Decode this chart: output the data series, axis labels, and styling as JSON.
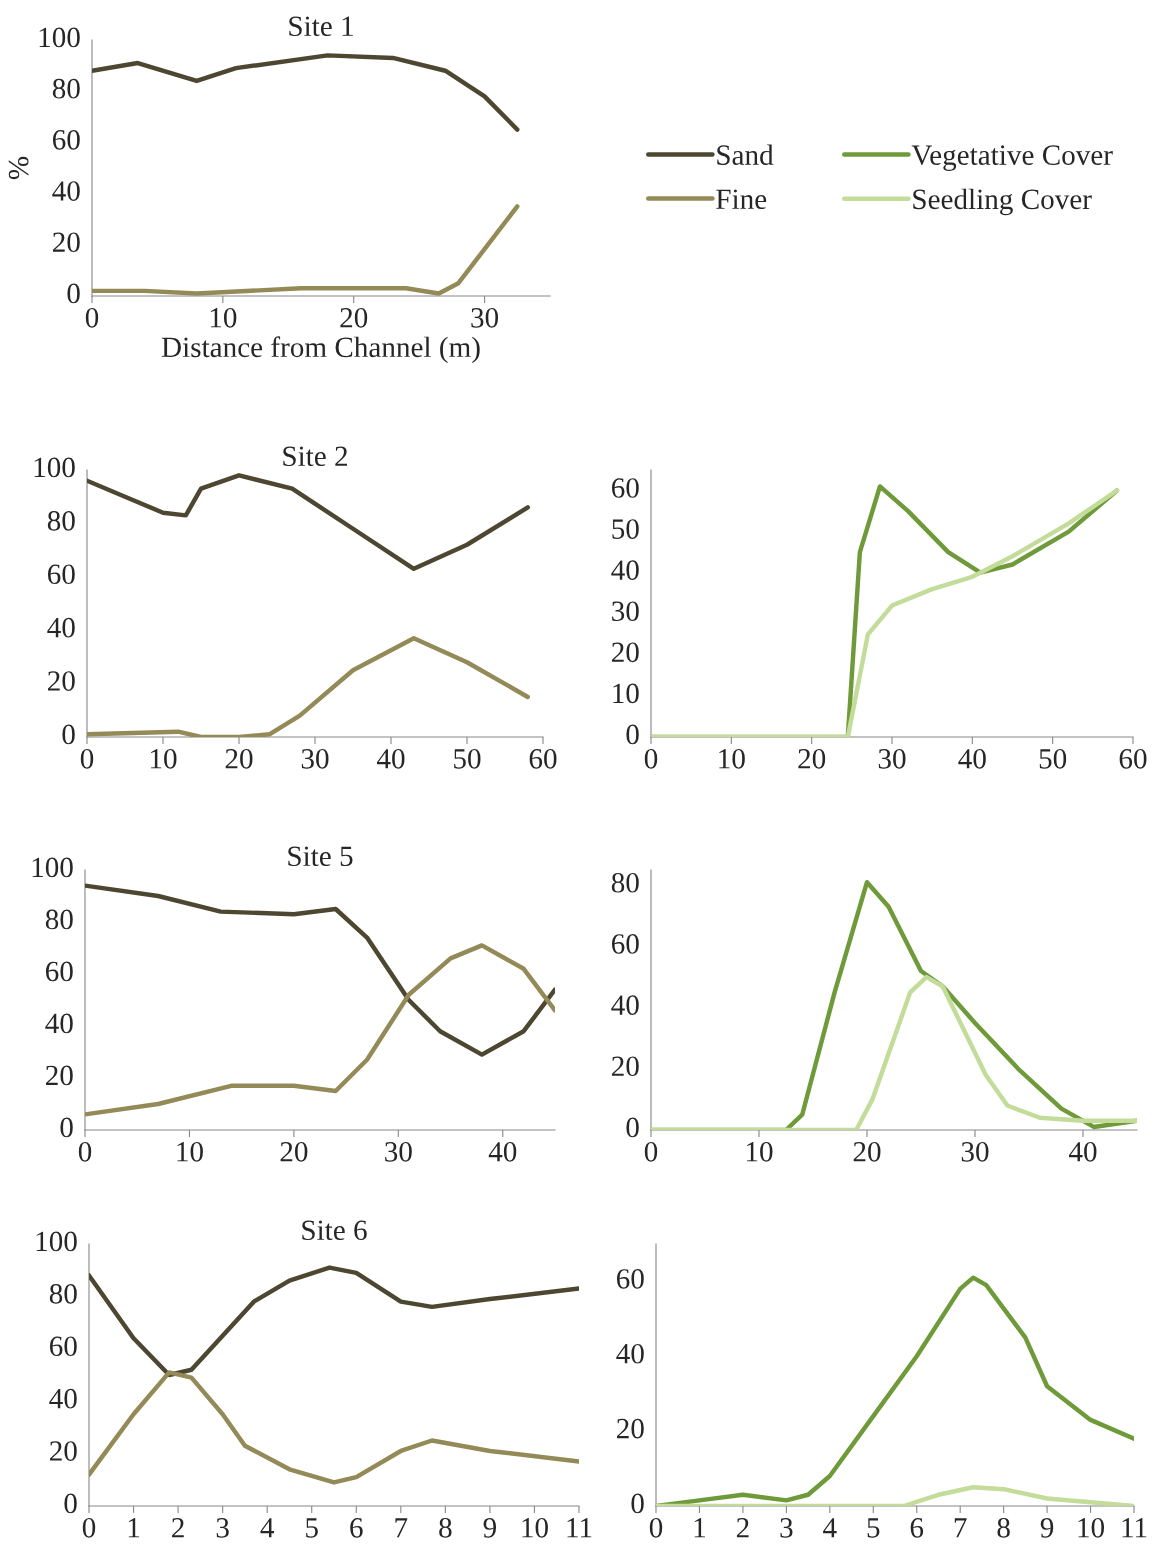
{
  "chart_data": [
    {
      "type": "line",
      "title": "Site 1",
      "xlabel": "Distance from Channel (m)",
      "ylabel": "%",
      "xlim": [
        0,
        35
      ],
      "xticks": [
        0,
        10,
        20,
        30
      ],
      "ylim": [
        0,
        100
      ],
      "yticks": [
        0,
        20,
        40,
        60,
        80,
        100
      ],
      "grid": false,
      "legend": "right",
      "line_style": "solid",
      "marker": "none",
      "series": [
        {
          "name": "Sand",
          "color": "#4d4630",
          "x": [
            0,
            3.5,
            8,
            11,
            18,
            23,
            27,
            30,
            32.5
          ],
          "values": [
            88,
            91,
            84,
            89,
            94,
            93,
            88,
            78,
            65
          ]
        },
        {
          "name": "Fine",
          "color": "#938a57",
          "x": [
            0,
            4,
            8,
            16,
            24,
            26.5,
            28,
            32.5
          ],
          "values": [
            2,
            2,
            1,
            3,
            3,
            1,
            5,
            35
          ]
        }
      ]
    },
    {
      "type": "line",
      "title": "Site 2",
      "xlim": [
        0,
        60
      ],
      "xticks": [
        0,
        10,
        20,
        30,
        40,
        50,
        60
      ],
      "ylim": [
        0,
        100
      ],
      "yticks": [
        0,
        20,
        40,
        60,
        80,
        100
      ],
      "grid": false,
      "line_style": "solid",
      "marker": "none",
      "series": [
        {
          "color": "#4d4630",
          "x": [
            0,
            5,
            10,
            13,
            15,
            20,
            27,
            35,
            43,
            50,
            58
          ],
          "values": [
            96,
            90,
            84,
            83,
            93,
            98,
            93,
            78,
            63,
            72,
            86
          ]
        },
        {
          "color": "#938a57",
          "x": [
            0,
            12,
            15,
            20,
            24,
            28,
            35,
            43,
            50,
            58
          ],
          "values": [
            1,
            2,
            0,
            0,
            1,
            8,
            25,
            37,
            28,
            15
          ]
        }
      ]
    },
    {
      "type": "line",
      "xlim": [
        0,
        60
      ],
      "xticks": [
        0,
        10,
        20,
        30,
        40,
        50,
        60
      ],
      "ylim": [
        0,
        65
      ],
      "yticks": [
        0,
        10,
        20,
        30,
        40,
        50,
        60
      ],
      "grid": false,
      "legend": "top",
      "line_style": "solid",
      "marker": "none",
      "series": [
        {
          "name": "Vegetative Cover",
          "color": "#6f9a3a",
          "x": [
            0,
            24.5,
            26,
            28.5,
            32,
            37,
            41,
            45,
            52,
            58
          ],
          "values": [
            0,
            0,
            45,
            61,
            55,
            45,
            40,
            42,
            50,
            60
          ]
        },
        {
          "name": "Seedling Cover",
          "color": "#c3dc9a",
          "x": [
            0,
            24.5,
            27,
            30,
            35,
            40,
            45,
            52,
            58
          ],
          "values": [
            0,
            0,
            25,
            32,
            36,
            39,
            44,
            52,
            60
          ]
        }
      ]
    },
    {
      "type": "line",
      "title": "Site 5",
      "xlim": [
        0,
        45
      ],
      "xticks": [
        0,
        10,
        20,
        30,
        40
      ],
      "ylim": [
        0,
        100
      ],
      "yticks": [
        0,
        20,
        40,
        60,
        80,
        100
      ],
      "grid": false,
      "line_style": "solid",
      "marker": "none",
      "series": [
        {
          "color": "#4d4630",
          "x": [
            0,
            7,
            13,
            20,
            24,
            27,
            31,
            34,
            38,
            42,
            45
          ],
          "values": [
            94,
            90,
            84,
            83,
            85,
            74,
            50,
            38,
            29,
            38,
            54
          ]
        },
        {
          "color": "#938a57",
          "x": [
            0,
            7,
            14,
            20,
            24,
            27,
            31,
            35,
            38,
            42,
            45
          ],
          "values": [
            6,
            10,
            17,
            17,
            15,
            27,
            52,
            66,
            71,
            62,
            46
          ]
        }
      ]
    },
    {
      "type": "line",
      "xlim": [
        0,
        45
      ],
      "xticks": [
        0,
        10,
        20,
        30,
        40
      ],
      "ylim": [
        0,
        85
      ],
      "yticks": [
        0,
        20,
        40,
        60,
        80
      ],
      "grid": false,
      "line_style": "solid",
      "marker": "none",
      "series": [
        {
          "color": "#6f9a3a",
          "x": [
            0,
            12.5,
            14,
            17,
            20,
            22,
            25,
            27,
            30,
            34,
            38,
            41,
            45
          ],
          "values": [
            0,
            0,
            5,
            45,
            81,
            73,
            52,
            47,
            35,
            20,
            7,
            1,
            3
          ]
        },
        {
          "color": "#c3dc9a",
          "x": [
            0,
            19,
            20.5,
            24,
            25.5,
            27,
            31,
            33,
            36,
            40,
            45
          ],
          "values": [
            0,
            0,
            10,
            45,
            50,
            47,
            18,
            8,
            4,
            3,
            3
          ]
        }
      ]
    },
    {
      "type": "line",
      "title": "Site 6",
      "xlim": [
        0,
        11
      ],
      "xticks": [
        0,
        1,
        2,
        3,
        4,
        5,
        6,
        7,
        8,
        9,
        10,
        11
      ],
      "ylim": [
        0,
        100
      ],
      "yticks": [
        0,
        20,
        40,
        60,
        80,
        100
      ],
      "grid": false,
      "line_style": "solid",
      "marker": "none",
      "series": [
        {
          "color": "#4d4630",
          "x": [
            0,
            1,
            1.8,
            2.3,
            3,
            3.7,
            4.5,
            5.4,
            6,
            7,
            7.7,
            9,
            11
          ],
          "values": [
            88,
            64,
            50,
            52,
            65,
            78,
            86,
            91,
            89,
            78,
            76,
            79,
            83
          ]
        },
        {
          "color": "#938a57",
          "x": [
            0,
            1,
            1.8,
            2.3,
            3,
            3.5,
            4.5,
            5.5,
            6,
            7,
            7.7,
            9,
            11
          ],
          "values": [
            12,
            35,
            51,
            49,
            35,
            23,
            14,
            9,
            11,
            21,
            25,
            21,
            17
          ]
        }
      ]
    },
    {
      "type": "line",
      "xlim": [
        0,
        11
      ],
      "xticks": [
        0,
        1,
        2,
        3,
        4,
        5,
        6,
        7,
        8,
        9,
        10,
        11
      ],
      "ylim": [
        0,
        70
      ],
      "yticks": [
        0,
        20,
        40,
        60
      ],
      "grid": false,
      "line_style": "solid",
      "marker": "none",
      "series": [
        {
          "color": "#6f9a3a",
          "x": [
            0,
            1,
            2,
            3,
            3.5,
            4,
            5,
            6,
            7,
            7.3,
            7.6,
            8.5,
            9,
            10,
            11
          ],
          "values": [
            0,
            1.5,
            3,
            1.5,
            3,
            8,
            24,
            40,
            58,
            61,
            59,
            45,
            32,
            23,
            18
          ]
        },
        {
          "color": "#c3dc9a",
          "x": [
            0,
            5,
            5.7,
            6.5,
            7.3,
            8,
            9,
            10,
            11
          ],
          "values": [
            0,
            0,
            0,
            3,
            5,
            4.5,
            2,
            1,
            0
          ]
        }
      ]
    }
  ]
}
